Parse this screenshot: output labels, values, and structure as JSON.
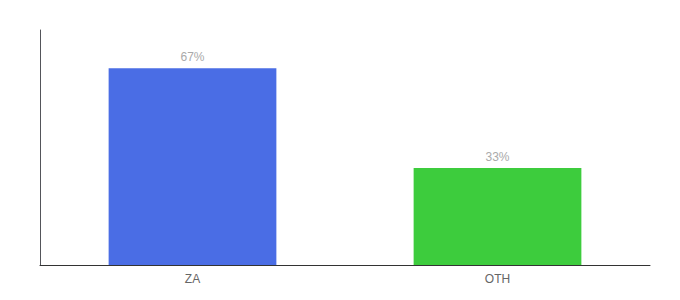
{
  "chart_data": {
    "type": "bar",
    "categories": [
      "ZA",
      "OTH"
    ],
    "values": [
      67,
      33
    ],
    "value_labels": [
      "67%",
      "33%"
    ],
    "colors": [
      "#4a6de5",
      "#3dcc3d"
    ],
    "ylim": [
      0,
      80
    ],
    "data_labels": true,
    "tick_labels": "x",
    "grid": false
  }
}
